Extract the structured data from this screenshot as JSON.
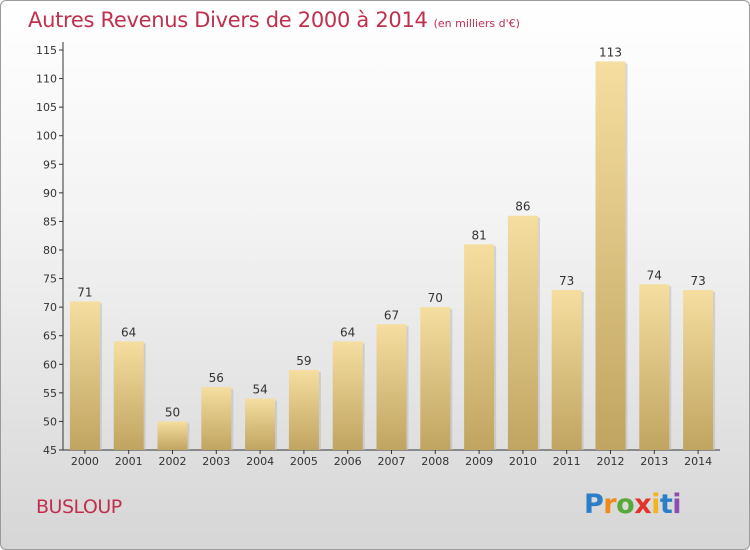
{
  "chart_data": {
    "type": "bar",
    "title": "Autres Revenus Divers de 2000 à 2014",
    "subtitle": "(en milliers d'€)",
    "categories": [
      "2000",
      "2001",
      "2002",
      "2003",
      "2004",
      "2005",
      "2006",
      "2007",
      "2008",
      "2009",
      "2010",
      "2011",
      "2012",
      "2013",
      "2014"
    ],
    "values": [
      71,
      64,
      50,
      56,
      54,
      59,
      64,
      67,
      70,
      81,
      86,
      73,
      113,
      74,
      73
    ],
    "ylim": [
      45,
      115
    ],
    "yticks": [
      45,
      50,
      55,
      60,
      65,
      70,
      75,
      80,
      85,
      90,
      95,
      100,
      105,
      110,
      115
    ],
    "xlabel": "",
    "ylabel": "",
    "grid": false
  },
  "commune": "BUSLOUP",
  "logo": {
    "letters": [
      "P",
      "r",
      "o",
      "x",
      "i",
      "t",
      "i"
    ],
    "colors": [
      "#2a7fc8",
      "#f08a1a",
      "#58a83a",
      "#e0342c",
      "#f2b51c",
      "#2a7fc8",
      "#8a4fb0"
    ]
  },
  "colors": {
    "title": "#c0304e",
    "bar_light": "#f5dea0",
    "bar_dark": "#c0a461",
    "axis": "#333333",
    "text": "#333333"
  }
}
